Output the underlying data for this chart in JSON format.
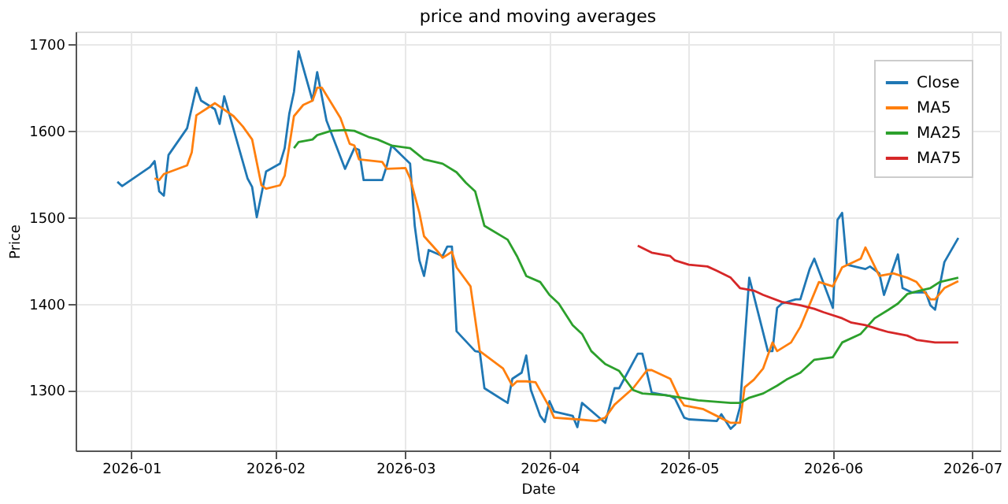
{
  "chart_data": {
    "type": "line",
    "title": "price and moving averages",
    "xlabel": "Date",
    "ylabel": "Price",
    "xlim": [
      "2025-12-20",
      "2026-07-07"
    ],
    "xticks": [
      "2026-01",
      "2026-02",
      "2026-03",
      "2026-04",
      "2026-05",
      "2026-06",
      "2026-07"
    ],
    "ylim": [
      1230,
      1715
    ],
    "yticks": [
      1300,
      1400,
      1500,
      1600,
      1700
    ],
    "grid": true,
    "legend": "top right",
    "line_style": "solid",
    "marker": "none",
    "series": [
      {
        "name": "Close",
        "color": "#1f77b4",
        "x": [
          "2025-12-29",
          "2025-12-30",
          "2026-01-05",
          "2026-01-06",
          "2026-01-07",
          "2026-01-08",
          "2026-01-09",
          "2026-01-13",
          "2026-01-15",
          "2026-01-16",
          "2026-01-19",
          "2026-01-20",
          "2026-01-21",
          "2026-01-26",
          "2026-01-27",
          "2026-01-28",
          "2026-01-30",
          "2026-02-02",
          "2026-02-03",
          "2026-02-04",
          "2026-02-05",
          "2026-02-06",
          "2026-02-09",
          "2026-02-10",
          "2026-02-12",
          "2026-02-16",
          "2026-02-18",
          "2026-02-19",
          "2026-02-20",
          "2026-02-24",
          "2026-02-25",
          "2026-02-26",
          "2026-03-02",
          "2026-03-03",
          "2026-03-04",
          "2026-03-05",
          "2026-03-06",
          "2026-03-09",
          "2026-03-10",
          "2026-03-11",
          "2026-03-12",
          "2026-03-16",
          "2026-03-17",
          "2026-03-18",
          "2026-03-23",
          "2026-03-24",
          "2026-03-26",
          "2026-03-27",
          "2026-03-28",
          "2026-03-30",
          "2026-03-31",
          "2026-04-01",
          "2026-04-02",
          "2026-04-06",
          "2026-04-07",
          "2026-04-08",
          "2026-04-13",
          "2026-04-15",
          "2026-04-16",
          "2026-04-20",
          "2026-04-21",
          "2026-04-23",
          "2026-04-27",
          "2026-04-28",
          "2026-04-30",
          "2026-05-01",
          "2026-05-07",
          "2026-05-08",
          "2026-05-10",
          "2026-05-11",
          "2026-05-12",
          "2026-05-14",
          "2026-05-18",
          "2026-05-19",
          "2026-05-20",
          "2026-05-21",
          "2026-05-24",
          "2026-05-25",
          "2026-05-27",
          "2026-05-28",
          "2026-06-01",
          "2026-06-02",
          "2026-06-03",
          "2026-06-04",
          "2026-06-08",
          "2026-06-09",
          "2026-06-11",
          "2026-06-12",
          "2026-06-15",
          "2026-06-16",
          "2026-06-18",
          "2026-06-21",
          "2026-06-22",
          "2026-06-23",
          "2026-06-25",
          "2026-06-28"
        ],
        "values": [
          1541,
          1536,
          1558,
          1565,
          1530,
          1525,
          1572,
          1603,
          1650,
          1635,
          1625,
          1608,
          1640,
          1545,
          1535,
          1500,
          1553,
          1562,
          1580,
          1620,
          1645,
          1692,
          1635,
          1668,
          1612,
          1556,
          1580,
          1578,
          1543,
          1543,
          1560,
          1583,
          1562,
          1490,
          1450,
          1432,
          1462,
          1455,
          1466,
          1466,
          1368,
          1345,
          1344,
          1302,
          1285,
          1313,
          1320,
          1340,
          1300,
          1270,
          1263,
          1287,
          1275,
          1270,
          1257,
          1285,
          1262,
          1302,
          1302,
          1342,
          1342,
          1297,
          1293,
          1290,
          1268,
          1266,
          1264,
          1272,
          1255,
          1260,
          1280,
          1430,
          1345,
          1345,
          1395,
          1400,
          1405,
          1405,
          1440,
          1452,
          1395,
          1497,
          1505,
          1445,
          1440,
          1443,
          1435,
          1410,
          1457,
          1418,
          1413,
          1413,
          1398,
          1393,
          1448,
          1476
        ]
      },
      {
        "name": "MA5",
        "color": "#ff7f0e",
        "x": [
          "2026-01-06",
          "2026-01-07",
          "2026-01-08",
          "2026-01-13",
          "2026-01-14",
          "2026-01-15",
          "2026-01-17",
          "2026-01-19",
          "2026-01-23",
          "2026-01-25",
          "2026-01-27",
          "2026-01-29",
          "2026-01-30",
          "2026-02-02",
          "2026-02-03",
          "2026-02-05",
          "2026-02-07",
          "2026-02-09",
          "2026-02-10",
          "2026-02-11",
          "2026-02-15",
          "2026-02-17",
          "2026-02-18",
          "2026-02-19",
          "2026-02-24",
          "2026-02-25",
          "2026-03-01",
          "2026-03-02",
          "2026-03-04",
          "2026-03-05",
          "2026-03-08",
          "2026-03-09",
          "2026-03-11",
          "2026-03-12",
          "2026-03-15",
          "2026-03-17",
          "2026-03-22",
          "2026-03-24",
          "2026-03-25",
          "2026-03-27",
          "2026-03-29",
          "2026-04-01",
          "2026-04-02",
          "2026-04-07",
          "2026-04-11",
          "2026-04-13",
          "2026-04-15",
          "2026-04-19",
          "2026-04-22",
          "2026-04-23",
          "2026-04-27",
          "2026-04-29",
          "2026-04-30",
          "2026-05-04",
          "2026-05-07",
          "2026-05-10",
          "2026-05-12",
          "2026-05-13",
          "2026-05-15",
          "2026-05-17",
          "2026-05-19",
          "2026-05-20",
          "2026-05-23",
          "2026-05-25",
          "2026-05-29",
          "2026-06-01",
          "2026-06-03",
          "2026-06-07",
          "2026-06-08",
          "2026-06-11",
          "2026-06-14",
          "2026-06-17",
          "2026-06-19",
          "2026-06-22",
          "2026-06-23",
          "2026-06-25",
          "2026-06-28"
        ],
        "values": [
          1545,
          1543,
          1550,
          1560,
          1575,
          1618,
          1625,
          1632,
          1617,
          1605,
          1590,
          1537,
          1533,
          1537,
          1548,
          1617,
          1630,
          1635,
          1650,
          1650,
          1615,
          1585,
          1583,
          1567,
          1564,
          1556,
          1557,
          1545,
          1505,
          1478,
          1460,
          1453,
          1460,
          1442,
          1420,
          1345,
          1325,
          1305,
          1310,
          1310,
          1309,
          1280,
          1268,
          1266,
          1264,
          1268,
          1283,
          1302,
          1323,
          1323,
          1313,
          1290,
          1282,
          1278,
          1270,
          1262,
          1262,
          1303,
          1312,
          1325,
          1355,
          1345,
          1355,
          1373,
          1425,
          1420,
          1442,
          1452,
          1465,
          1432,
          1435,
          1430,
          1425,
          1405,
          1405,
          1418,
          1426
        ]
      },
      {
        "name": "MA25",
        "color": "#2ca02c",
        "x": [
          "2026-02-05",
          "2026-02-06",
          "2026-02-09",
          "2026-02-10",
          "2026-02-13",
          "2026-02-16",
          "2026-02-18",
          "2026-02-21",
          "2026-02-23",
          "2026-02-26",
          "2026-03-02",
          "2026-03-05",
          "2026-03-09",
          "2026-03-12",
          "2026-03-14",
          "2026-03-16",
          "2026-03-18",
          "2026-03-23",
          "2026-03-25",
          "2026-03-27",
          "2026-03-30",
          "2026-04-01",
          "2026-04-03",
          "2026-04-06",
          "2026-04-08",
          "2026-04-10",
          "2026-04-13",
          "2026-04-16",
          "2026-04-19",
          "2026-04-21",
          "2026-04-26",
          "2026-05-03",
          "2026-05-10",
          "2026-05-12",
          "2026-05-14",
          "2026-05-17",
          "2026-05-20",
          "2026-05-22",
          "2026-05-25",
          "2026-05-28",
          "2026-06-01",
          "2026-06-03",
          "2026-06-07",
          "2026-06-10",
          "2026-06-13",
          "2026-06-15",
          "2026-06-17",
          "2026-06-19",
          "2026-06-22",
          "2026-06-24",
          "2026-06-28"
        ],
        "values": [
          1580,
          1587,
          1590,
          1595,
          1600,
          1601,
          1600,
          1593,
          1590,
          1583,
          1580,
          1567,
          1562,
          1552,
          1540,
          1530,
          1490,
          1474,
          1455,
          1432,
          1425,
          1410,
          1400,
          1375,
          1365,
          1345,
          1330,
          1322,
          1300,
          1296,
          1294,
          1288,
          1285,
          1285,
          1291,
          1296,
          1305,
          1312,
          1320,
          1335,
          1338,
          1355,
          1365,
          1383,
          1393,
          1400,
          1411,
          1414,
          1418,
          1425,
          1430
        ]
      },
      {
        "name": "MA75",
        "color": "#d62728",
        "x": [
          "2026-04-20",
          "2026-04-23",
          "2026-04-27",
          "2026-04-28",
          "2026-05-01",
          "2026-05-05",
          "2026-05-07",
          "2026-05-10",
          "2026-05-12",
          "2026-05-15",
          "2026-05-17",
          "2026-05-21",
          "2026-05-25",
          "2026-05-28",
          "2026-05-30",
          "2026-06-03",
          "2026-06-05",
          "2026-06-08",
          "2026-06-11",
          "2026-06-13",
          "2026-06-17",
          "2026-06-19",
          "2026-06-23",
          "2026-06-28"
        ],
        "values": [
          1467,
          1459,
          1455,
          1450,
          1445,
          1443,
          1438,
          1430,
          1418,
          1415,
          1410,
          1402,
          1398,
          1394,
          1390,
          1383,
          1378,
          1375,
          1370,
          1367,
          1363,
          1358,
          1355,
          1355
        ]
      }
    ]
  }
}
